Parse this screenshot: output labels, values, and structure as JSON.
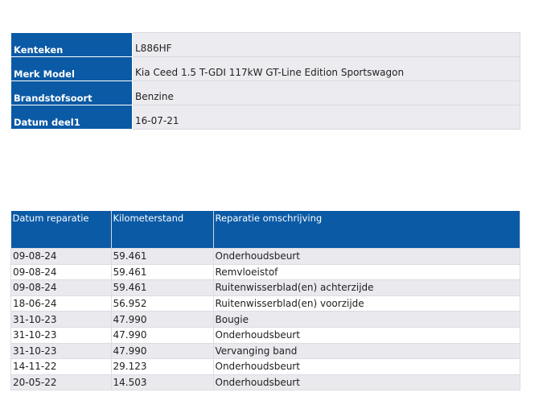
{
  "vehicle": {
    "rows": [
      {
        "label": "Kenteken",
        "value": "L886HF"
      },
      {
        "label": "Merk Model",
        "value": "Kia Ceed 1.5 T-GDI 117kW GT-Line Edition Sportswagon"
      },
      {
        "label": "Brandstofsoort",
        "value": "Benzine"
      },
      {
        "label": "Datum deel1",
        "value": "16-07-21"
      }
    ]
  },
  "repairs": {
    "headers": [
      "Datum reparatie",
      "Kilometerstand",
      "Reparatie omschrijving"
    ],
    "rows": [
      [
        "09-08-24",
        "59.461",
        "Onderhoudsbeurt"
      ],
      [
        "09-08-24",
        "59.461",
        "Remvloeistof"
      ],
      [
        "09-08-24",
        "59.461",
        "Ruitenwisserblad(en) achterzijde"
      ],
      [
        "18-06-24",
        "56.952",
        "Ruitenwisserblad(en) voorzijde"
      ],
      [
        "31-10-23",
        "47.990",
        "Bougie"
      ],
      [
        "31-10-23",
        "47.990",
        "Onderhoudsbeurt"
      ],
      [
        "31-10-23",
        "47.990",
        "Vervanging band"
      ],
      [
        "14-11-22",
        "29.123",
        "Onderhoudsbeurt"
      ],
      [
        "20-05-22",
        "14.503",
        "Onderhoudsbeurt"
      ]
    ]
  },
  "colors": {
    "header_blue": "#0b5aa5",
    "row_gray": "#e9e9ee"
  }
}
